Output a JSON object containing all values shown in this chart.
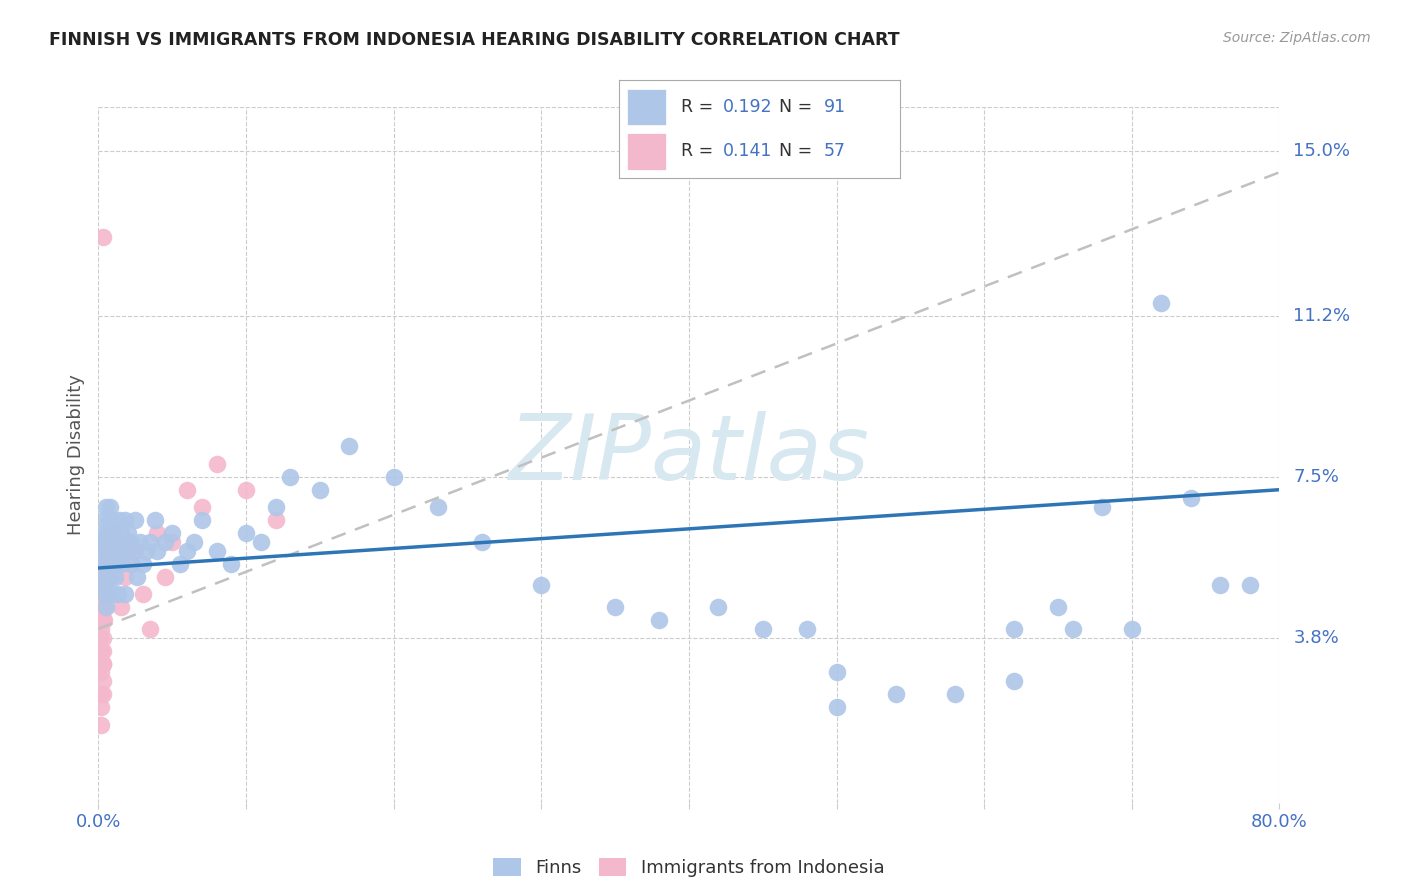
{
  "title": "FINNISH VS IMMIGRANTS FROM INDONESIA HEARING DISABILITY CORRELATION CHART",
  "source": "Source: ZipAtlas.com",
  "ylabel": "Hearing Disability",
  "xlim": [
    0.0,
    0.8
  ],
  "ylim": [
    0.0,
    0.16
  ],
  "ytick_labels_right": [
    "15.0%",
    "11.2%",
    "7.5%",
    "3.8%"
  ],
  "ytick_positions_right": [
    0.15,
    0.112,
    0.075,
    0.038
  ],
  "grid_color": "#cccccc",
  "background_color": "#ffffff",
  "watermark": "ZIPatlas",
  "watermark_color": "#d8e8f0",
  "legend_R1": "0.192",
  "legend_N1": "91",
  "legend_R2": "0.141",
  "legend_N2": "57",
  "finns_color": "#aec6e8",
  "immigrants_color": "#f4b8cc",
  "finns_line_color": "#2e75b6",
  "immigrants_line_color": "#c0c0c0",
  "legend_text_color": "#333333",
  "legend_value_color": "#4472c4",
  "axis_label_color": "#4472c4",
  "finns_scatter_x": [
    0.003,
    0.003,
    0.003,
    0.004,
    0.004,
    0.004,
    0.004,
    0.005,
    0.005,
    0.005,
    0.005,
    0.005,
    0.006,
    0.006,
    0.006,
    0.007,
    0.007,
    0.007,
    0.008,
    0.008,
    0.008,
    0.009,
    0.009,
    0.01,
    0.01,
    0.01,
    0.011,
    0.011,
    0.012,
    0.012,
    0.013,
    0.013,
    0.014,
    0.014,
    0.015,
    0.015,
    0.016,
    0.017,
    0.018,
    0.018,
    0.02,
    0.02,
    0.022,
    0.022,
    0.024,
    0.025,
    0.026,
    0.028,
    0.03,
    0.032,
    0.035,
    0.038,
    0.04,
    0.045,
    0.05,
    0.055,
    0.06,
    0.065,
    0.07,
    0.08,
    0.09,
    0.1,
    0.11,
    0.12,
    0.13,
    0.15,
    0.17,
    0.2,
    0.23,
    0.26,
    0.3,
    0.35,
    0.38,
    0.42,
    0.45,
    0.48,
    0.5,
    0.54,
    0.58,
    0.62,
    0.65,
    0.68,
    0.72,
    0.74,
    0.76,
    0.78,
    0.62,
    0.66,
    0.7,
    0.5
  ],
  "finns_scatter_y": [
    0.055,
    0.06,
    0.052,
    0.058,
    0.062,
    0.065,
    0.048,
    0.05,
    0.055,
    0.06,
    0.068,
    0.045,
    0.058,
    0.062,
    0.055,
    0.048,
    0.055,
    0.065,
    0.052,
    0.06,
    0.068,
    0.055,
    0.062,
    0.048,
    0.058,
    0.065,
    0.052,
    0.06,
    0.055,
    0.062,
    0.048,
    0.06,
    0.058,
    0.065,
    0.055,
    0.062,
    0.058,
    0.06,
    0.048,
    0.065,
    0.058,
    0.062,
    0.055,
    0.06,
    0.058,
    0.065,
    0.052,
    0.06,
    0.055,
    0.058,
    0.06,
    0.065,
    0.058,
    0.06,
    0.062,
    0.055,
    0.058,
    0.06,
    0.065,
    0.058,
    0.055,
    0.062,
    0.06,
    0.068,
    0.075,
    0.072,
    0.082,
    0.075,
    0.068,
    0.06,
    0.05,
    0.045,
    0.042,
    0.045,
    0.04,
    0.04,
    0.022,
    0.025,
    0.025,
    0.028,
    0.045,
    0.068,
    0.115,
    0.07,
    0.05,
    0.05,
    0.04,
    0.04,
    0.04,
    0.03
  ],
  "immigrants_scatter_x": [
    0.001,
    0.001,
    0.001,
    0.002,
    0.002,
    0.002,
    0.002,
    0.002,
    0.002,
    0.002,
    0.002,
    0.003,
    0.003,
    0.003,
    0.003,
    0.003,
    0.003,
    0.003,
    0.003,
    0.003,
    0.004,
    0.004,
    0.004,
    0.004,
    0.004,
    0.005,
    0.005,
    0.005,
    0.006,
    0.006,
    0.007,
    0.007,
    0.008,
    0.008,
    0.009,
    0.01,
    0.01,
    0.012,
    0.015,
    0.015,
    0.018,
    0.02,
    0.022,
    0.025,
    0.03,
    0.035,
    0.04,
    0.045,
    0.05,
    0.06,
    0.07,
    0.08,
    0.1,
    0.12,
    0.002,
    0.003,
    0.003
  ],
  "immigrants_scatter_y": [
    0.038,
    0.042,
    0.046,
    0.05,
    0.045,
    0.04,
    0.035,
    0.03,
    0.025,
    0.022,
    0.018,
    0.05,
    0.048,
    0.045,
    0.042,
    0.038,
    0.035,
    0.032,
    0.028,
    0.025,
    0.052,
    0.055,
    0.05,
    0.045,
    0.042,
    0.055,
    0.058,
    0.06,
    0.052,
    0.048,
    0.055,
    0.06,
    0.052,
    0.058,
    0.055,
    0.058,
    0.062,
    0.055,
    0.058,
    0.045,
    0.052,
    0.06,
    0.055,
    0.058,
    0.048,
    0.04,
    0.062,
    0.052,
    0.06,
    0.072,
    0.068,
    0.078,
    0.072,
    0.065,
    0.06,
    0.032,
    0.13
  ],
  "finns_trend_x": [
    0.0,
    0.8
  ],
  "finns_trend_y": [
    0.054,
    0.072
  ],
  "immigrants_trend_x": [
    0.0,
    0.8
  ],
  "immigrants_trend_y": [
    0.04,
    0.145
  ]
}
